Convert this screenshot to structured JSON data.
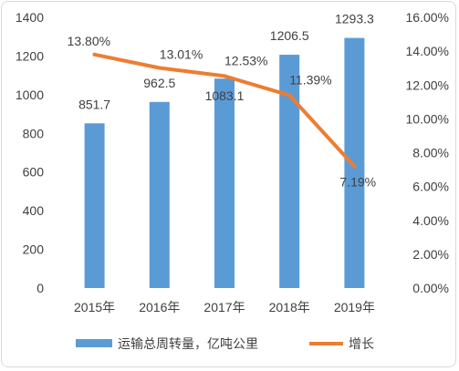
{
  "chart_data": {
    "type": "bar",
    "categories": [
      "2015年",
      "2016年",
      "2017年",
      "2018年",
      "2019年"
    ],
    "series": [
      {
        "name": "运输总周转量，亿吨公里",
        "type": "bar",
        "axis": "left",
        "color": "#5b9bd5",
        "values": [
          851.7,
          962.5,
          1083.1,
          1206.5,
          1293.3
        ],
        "labels": [
          "851.7",
          "962.5",
          "1083.1",
          "1206.5",
          "1293.3"
        ]
      },
      {
        "name": "增长",
        "type": "line",
        "axis": "right",
        "color": "#ed7d31",
        "values": [
          13.8,
          13.01,
          12.53,
          11.39,
          7.19
        ],
        "labels": [
          "13.80%",
          "13.01%",
          "12.53%",
          "11.39%",
          "7.19%"
        ]
      }
    ],
    "y_left": {
      "ylim": [
        0,
        1400
      ],
      "ticks": [
        "0",
        "200",
        "400",
        "600",
        "800",
        "1000",
        "1200",
        "1400"
      ]
    },
    "y_right": {
      "ylim": [
        0,
        16
      ],
      "ticks": [
        "0.00%",
        "2.00%",
        "4.00%",
        "6.00%",
        "8.00%",
        "10.00%",
        "12.00%",
        "14.00%",
        "16.00%"
      ]
    },
    "grid": false,
    "legend": "bottom"
  }
}
